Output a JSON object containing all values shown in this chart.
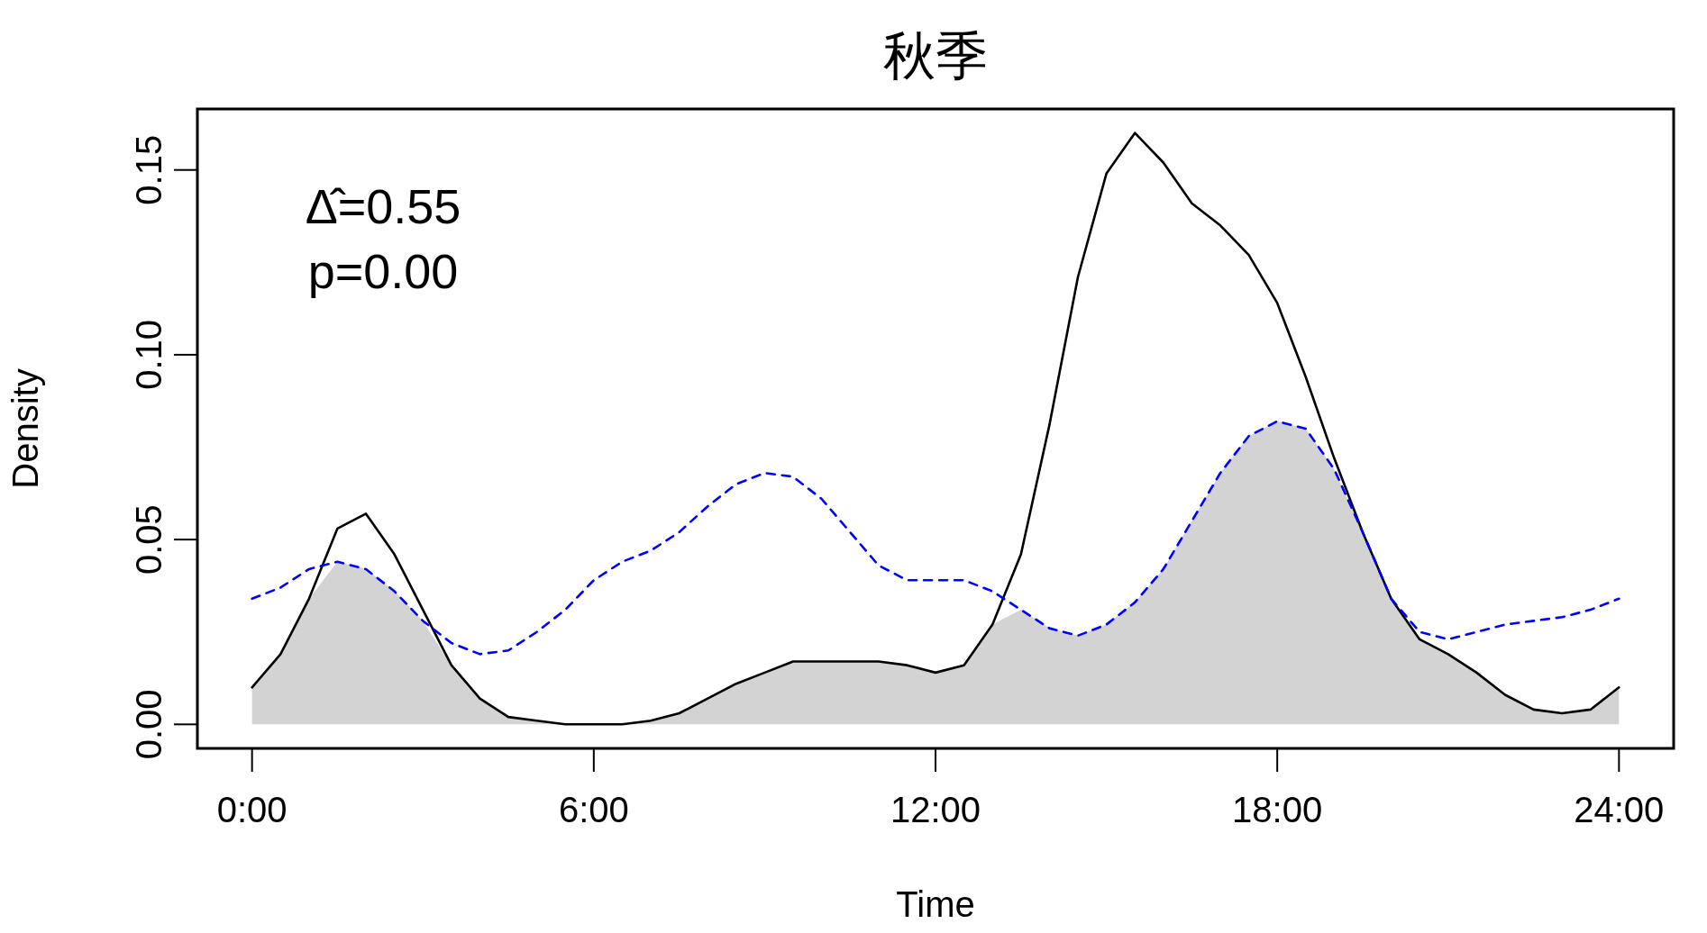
{
  "chart_data": {
    "type": "line",
    "title": "秋季",
    "xlabel": "Time",
    "ylabel": "Density",
    "annotations": [
      "Δ̂=0.55",
      "p=0.00"
    ],
    "x": [
      0,
      0.5,
      1,
      1.5,
      2,
      2.5,
      3,
      3.5,
      4,
      4.5,
      5,
      5.5,
      6,
      6.5,
      7,
      7.5,
      8,
      8.5,
      9,
      9.5,
      10,
      10.5,
      11,
      11.5,
      12,
      12.5,
      13,
      13.5,
      14,
      14.5,
      15,
      15.5,
      16,
      16.5,
      17,
      17.5,
      18,
      18.5,
      19,
      19.5,
      20,
      20.5,
      21,
      21.5,
      22,
      22.5,
      23,
      23.5,
      24
    ],
    "series": [
      {
        "type": "area",
        "color": "#d3d3d3",
        "values": [
          0.01,
          0.019,
          0.034,
          0.044,
          0.042,
          0.036,
          0.028,
          0.016,
          0.007,
          0.002,
          0.001,
          0.0,
          0.0,
          0.0,
          0.001,
          0.003,
          0.007,
          0.011,
          0.014,
          0.017,
          0.017,
          0.017,
          0.017,
          0.016,
          0.014,
          0.016,
          0.027,
          0.031,
          0.026,
          0.024,
          0.027,
          0.033,
          0.042,
          0.055,
          0.068,
          0.078,
          0.082,
          0.08,
          0.069,
          0.052,
          0.034,
          0.023,
          0.019,
          0.014,
          0.008,
          0.004,
          0.003,
          0.004,
          0.01
        ]
      },
      {
        "color": "#000000",
        "line_style": "solid",
        "values": [
          0.01,
          0.019,
          0.034,
          0.053,
          0.057,
          0.046,
          0.031,
          0.016,
          0.007,
          0.002,
          0.001,
          0.0,
          0.0,
          0.0,
          0.001,
          0.003,
          0.007,
          0.011,
          0.014,
          0.017,
          0.017,
          0.017,
          0.017,
          0.016,
          0.014,
          0.016,
          0.027,
          0.046,
          0.081,
          0.121,
          0.149,
          0.16,
          0.152,
          0.141,
          0.135,
          0.127,
          0.114,
          0.094,
          0.072,
          0.052,
          0.034,
          0.023,
          0.019,
          0.014,
          0.008,
          0.004,
          0.003,
          0.004,
          0.01
        ]
      },
      {
        "color": "#0000ff",
        "line_style": "dashed",
        "values": [
          0.034,
          0.037,
          0.042,
          0.044,
          0.042,
          0.036,
          0.028,
          0.022,
          0.019,
          0.02,
          0.025,
          0.031,
          0.039,
          0.044,
          0.047,
          0.052,
          0.059,
          0.065,
          0.068,
          0.067,
          0.061,
          0.052,
          0.043,
          0.039,
          0.039,
          0.039,
          0.036,
          0.031,
          0.026,
          0.024,
          0.027,
          0.033,
          0.042,
          0.055,
          0.068,
          0.078,
          0.082,
          0.08,
          0.069,
          0.052,
          0.034,
          0.025,
          0.023,
          0.025,
          0.027,
          0.028,
          0.029,
          0.031,
          0.034
        ]
      }
    ],
    "xlim": [
      -0.96,
      24.96
    ],
    "ylim": [
      -0.0065,
      0.1665
    ],
    "xticks": [
      {
        "value": 0,
        "label": "0:00"
      },
      {
        "value": 6,
        "label": "6:00"
      },
      {
        "value": 12,
        "label": "12:00"
      },
      {
        "value": 18,
        "label": "18:00"
      },
      {
        "value": 24,
        "label": "24:00"
      }
    ],
    "yticks": [
      {
        "value": 0,
        "label": "0.00"
      },
      {
        "value": 0.05,
        "label": "0.05"
      },
      {
        "value": 0.1,
        "label": "0.10"
      },
      {
        "value": 0.15,
        "label": "0.15"
      }
    ],
    "grid": false
  }
}
